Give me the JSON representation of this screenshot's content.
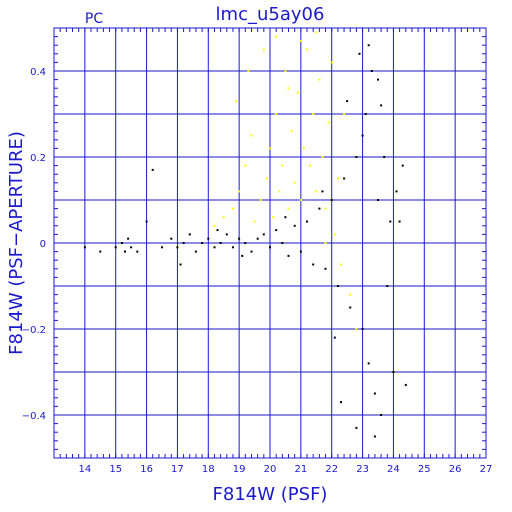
{
  "chart_data": {
    "type": "scatter",
    "title": "lmc_u5ay06",
    "corner_label": "PC",
    "xlabel": "F814W (PSF)",
    "ylabel": "F814W (PSF−APERTURE)",
    "xlim": [
      13,
      27
    ],
    "ylim": [
      -0.5,
      0.5
    ],
    "xticks": [
      14,
      15,
      16,
      17,
      18,
      19,
      20,
      21,
      22,
      23,
      24,
      25,
      26,
      27
    ],
    "yticks": [
      -0.4,
      -0.2,
      0,
      0.2,
      0.4
    ],
    "ytick_labels": [
      "−0.4",
      "−0.2",
      "0",
      "0.2",
      "0.4"
    ],
    "grid": true,
    "colors": {
      "axis": "#1a1acc",
      "black_series": "#000000",
      "yellow_series": "#ffff00",
      "background": "#ffffff"
    },
    "series": [
      {
        "color": "yellow",
        "points": [
          [
            18.2,
            0.04
          ],
          [
            18.5,
            0.06
          ],
          [
            18.8,
            0.08
          ],
          [
            19.0,
            0.12
          ],
          [
            19.2,
            0.18
          ],
          [
            19.4,
            0.25
          ],
          [
            19.5,
            0.05
          ],
          [
            19.7,
            0.1
          ],
          [
            19.9,
            0.15
          ],
          [
            20.0,
            0.22
          ],
          [
            20.1,
            0.06
          ],
          [
            20.2,
            0.3
          ],
          [
            20.3,
            0.12
          ],
          [
            20.4,
            0.18
          ],
          [
            20.5,
            0.4
          ],
          [
            20.6,
            0.08
          ],
          [
            20.7,
            0.26
          ],
          [
            20.8,
            0.14
          ],
          [
            20.9,
            0.35
          ],
          [
            21.0,
            0.1
          ],
          [
            21.1,
            0.22
          ],
          [
            21.2,
            0.45
          ],
          [
            21.3,
            0.18
          ],
          [
            21.4,
            0.3
          ],
          [
            21.5,
            0.12
          ],
          [
            21.6,
            0.38
          ],
          [
            21.7,
            0.2
          ],
          [
            21.8,
            0.08
          ],
          [
            21.9,
            0.28
          ],
          [
            22.0,
            0.42
          ],
          [
            22.2,
            0.15
          ],
          [
            22.4,
            0.3
          ],
          [
            19.8,
            0.45
          ],
          [
            20.2,
            0.48
          ],
          [
            21.0,
            0.47
          ],
          [
            21.5,
            0.49
          ],
          [
            18.9,
            0.33
          ],
          [
            19.3,
            0.4
          ],
          [
            20.6,
            0.36
          ],
          [
            21.2,
            0.05
          ],
          [
            21.8,
            0.0
          ],
          [
            22.3,
            -0.05
          ],
          [
            22.1,
            0.02
          ],
          [
            22.6,
            -0.12
          ],
          [
            22.8,
            -0.2
          ]
        ]
      },
      {
        "color": "black",
        "points": [
          [
            14.0,
            -0.01
          ],
          [
            14.5,
            -0.02
          ],
          [
            15.0,
            -0.01
          ],
          [
            15.2,
            0.0
          ],
          [
            15.3,
            -0.02
          ],
          [
            15.4,
            0.01
          ],
          [
            15.5,
            -0.01
          ],
          [
            16.0,
            0.05
          ],
          [
            16.2,
            0.17
          ],
          [
            16.5,
            -0.01
          ],
          [
            17.0,
            -0.01
          ],
          [
            17.2,
            0.0
          ],
          [
            17.4,
            0.02
          ],
          [
            17.6,
            -0.02
          ],
          [
            17.8,
            0.0
          ],
          [
            18.0,
            0.01
          ],
          [
            18.2,
            -0.01
          ],
          [
            18.4,
            0.0
          ],
          [
            18.6,
            0.02
          ],
          [
            18.8,
            -0.01
          ],
          [
            19.0,
            0.01
          ],
          [
            19.2,
            0.0
          ],
          [
            19.4,
            -0.02
          ],
          [
            19.6,
            0.01
          ],
          [
            19.8,
            0.02
          ],
          [
            20.0,
            -0.01
          ],
          [
            20.2,
            0.03
          ],
          [
            20.4,
            0.0
          ],
          [
            20.6,
            -0.03
          ],
          [
            20.8,
            0.04
          ],
          [
            21.0,
            -0.02
          ],
          [
            21.2,
            0.05
          ],
          [
            21.4,
            -0.05
          ],
          [
            21.6,
            0.08
          ],
          [
            21.8,
            -0.06
          ],
          [
            22.0,
            0.1
          ],
          [
            22.2,
            -0.1
          ],
          [
            22.4,
            0.15
          ],
          [
            22.6,
            -0.15
          ],
          [
            22.8,
            0.2
          ],
          [
            23.0,
            -0.2
          ],
          [
            23.1,
            0.3
          ],
          [
            23.2,
            -0.28
          ],
          [
            23.3,
            0.4
          ],
          [
            23.4,
            -0.35
          ],
          [
            23.5,
            0.1
          ],
          [
            23.6,
            -0.4
          ],
          [
            23.7,
            0.2
          ],
          [
            23.8,
            -0.1
          ],
          [
            23.9,
            0.05
          ],
          [
            24.0,
            -0.3
          ],
          [
            24.2,
            0.05
          ],
          [
            24.4,
            -0.33
          ],
          [
            24.3,
            0.18
          ],
          [
            22.9,
            0.44
          ],
          [
            23.2,
            0.46
          ],
          [
            23.5,
            0.38
          ],
          [
            22.5,
            0.33
          ],
          [
            22.3,
            -0.37
          ],
          [
            22.8,
            -0.43
          ],
          [
            23.4,
            -0.45
          ],
          [
            15.7,
            -0.02
          ],
          [
            16.8,
            0.01
          ],
          [
            17.1,
            -0.05
          ],
          [
            18.3,
            0.03
          ],
          [
            19.1,
            -0.03
          ],
          [
            20.5,
            0.06
          ],
          [
            21.7,
            0.12
          ],
          [
            22.1,
            -0.22
          ],
          [
            23.0,
            0.25
          ],
          [
            23.6,
            0.32
          ],
          [
            24.1,
            0.12
          ]
        ]
      }
    ]
  }
}
